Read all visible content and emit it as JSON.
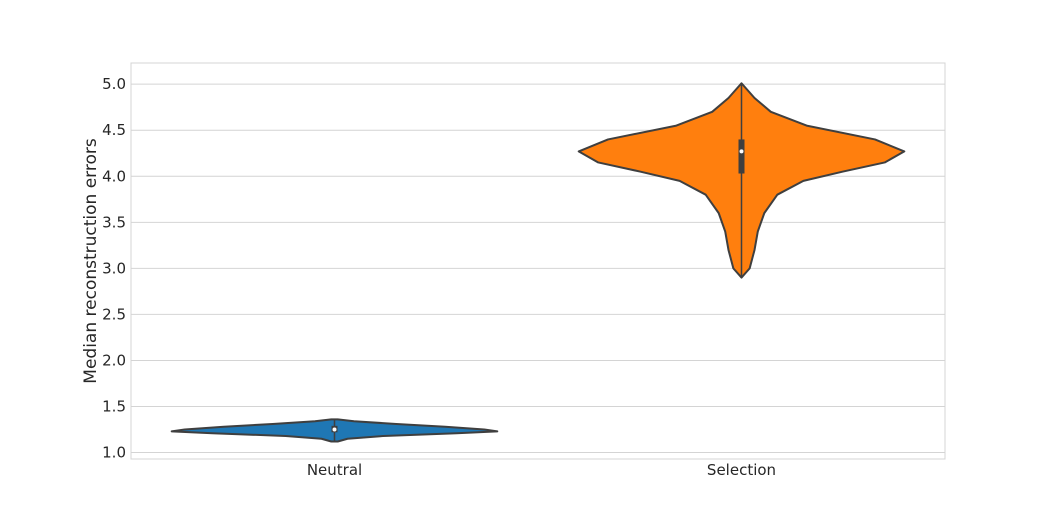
{
  "chart_data": {
    "type": "violin",
    "title": "",
    "xlabel": "",
    "ylabel": "Median reconstruction errors",
    "categories": [
      "Neutral",
      "Selection"
    ],
    "ylim": [
      0.93,
      5.23
    ],
    "yticks": [
      "1.0",
      "1.5",
      "2.0",
      "2.5",
      "3.0",
      "3.5",
      "4.0",
      "4.5",
      "5.0"
    ],
    "grid": true,
    "series": [
      {
        "category": "Neutral",
        "color": "#1f77b4",
        "min": 1.12,
        "q1": 1.22,
        "median": 1.25,
        "q3": 1.29,
        "max": 1.36,
        "density": [
          [
            1.12,
            0.02
          ],
          [
            1.15,
            0.08
          ],
          [
            1.18,
            0.3
          ],
          [
            1.21,
            0.75
          ],
          [
            1.23,
            1.0
          ],
          [
            1.25,
            0.92
          ],
          [
            1.28,
            0.68
          ],
          [
            1.31,
            0.38
          ],
          [
            1.34,
            0.12
          ],
          [
            1.36,
            0.02
          ]
        ]
      },
      {
        "category": "Selection",
        "color": "#ff7f0e",
        "min": 2.9,
        "q1": 4.03,
        "median": 4.27,
        "q3": 4.4,
        "max": 5.01,
        "density": [
          [
            2.9,
            0.0
          ],
          [
            3.0,
            0.05
          ],
          [
            3.2,
            0.08
          ],
          [
            3.4,
            0.1
          ],
          [
            3.6,
            0.14
          ],
          [
            3.8,
            0.22
          ],
          [
            3.95,
            0.38
          ],
          [
            4.05,
            0.62
          ],
          [
            4.15,
            0.88
          ],
          [
            4.27,
            1.0
          ],
          [
            4.4,
            0.82
          ],
          [
            4.55,
            0.4
          ],
          [
            4.7,
            0.18
          ],
          [
            4.85,
            0.08
          ],
          [
            5.01,
            0.0
          ]
        ]
      }
    ]
  }
}
